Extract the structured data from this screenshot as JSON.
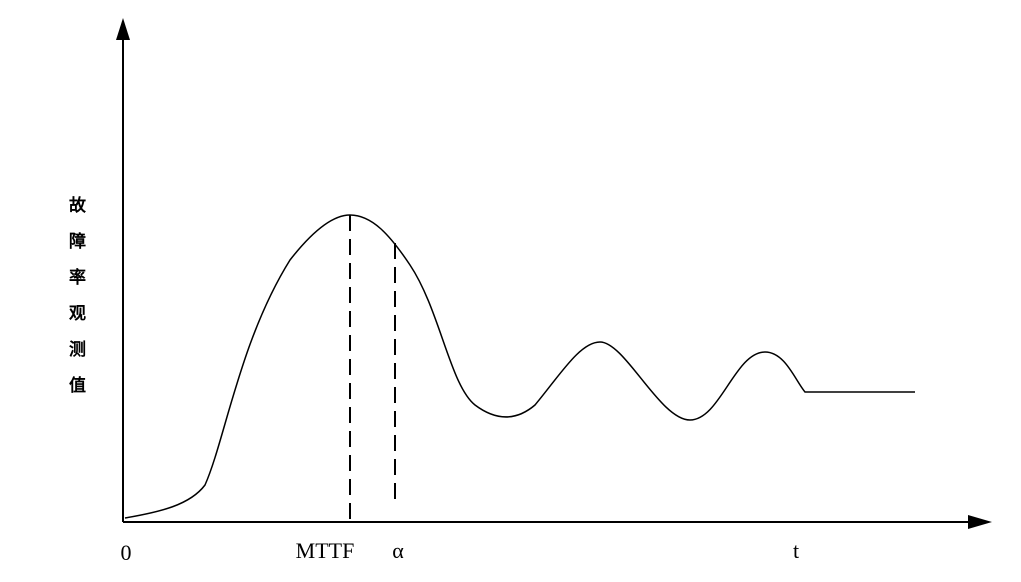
{
  "y_axis_label": "故障率观测值",
  "x_labels": {
    "origin": "0",
    "mttf": "MTTF",
    "alpha": "α",
    "t": "t"
  }
}
